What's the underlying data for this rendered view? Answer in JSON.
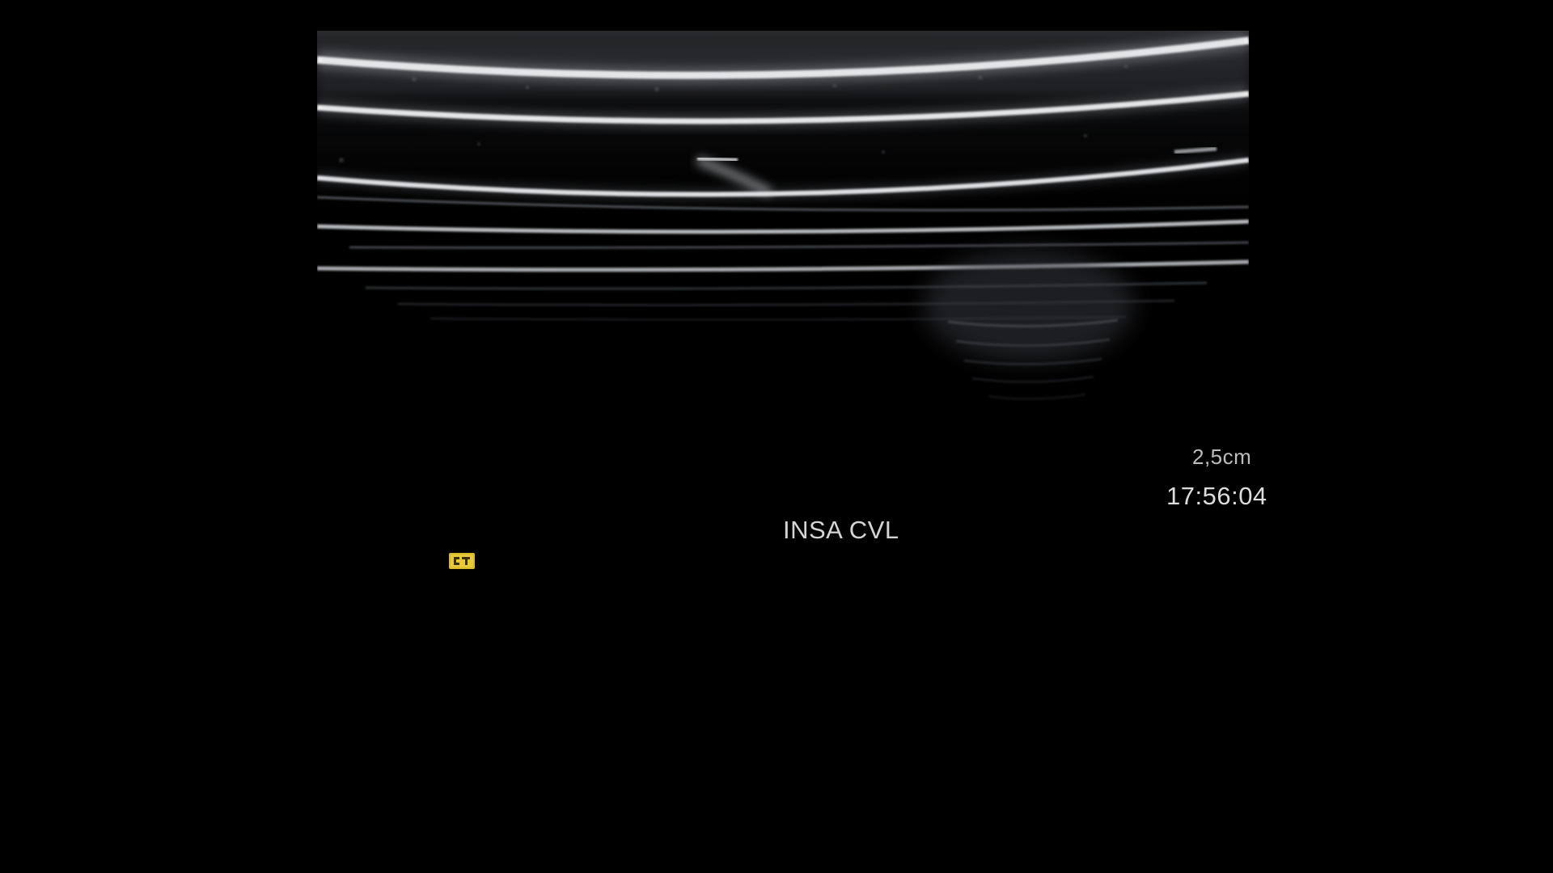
{
  "overlay": {
    "depth": "2,5cm",
    "time": "17:56:04",
    "site": "INSA CVL"
  },
  "icons": {
    "probe_marker": "probe-orientation-icon"
  },
  "colors": {
    "background": "#000000",
    "overlay_text": "#d4d4d4",
    "marker": "#d8b92a"
  }
}
